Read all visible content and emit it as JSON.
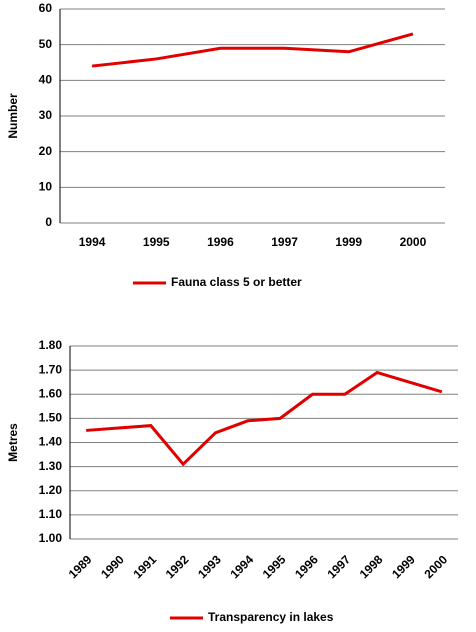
{
  "chart_data": [
    {
      "type": "line",
      "y_label": "Number",
      "categories": [
        "1994",
        "1995",
        "1996",
        "1997",
        "1999",
        "2000"
      ],
      "series": [
        {
          "name": "Fauna class 5 or better",
          "color": "#e00000",
          "values": [
            44,
            46,
            49,
            49,
            48,
            53
          ]
        }
      ],
      "ylim": [
        0,
        60
      ],
      "yticks": [
        0,
        10,
        20,
        30,
        40,
        50,
        60
      ],
      "grid": true,
      "legend": "bottom"
    },
    {
      "type": "line",
      "y_label": "Metres",
      "categories": [
        "1989",
        "1990",
        "1991",
        "1992",
        "1993",
        "1994",
        "1995",
        "1996",
        "1997",
        "1998",
        "1999",
        "2000"
      ],
      "series": [
        {
          "name": "Transparency in lakes",
          "color": "#e00000",
          "values": [
            1.45,
            1.46,
            1.47,
            1.31,
            1.44,
            1.49,
            1.5,
            1.6,
            1.6,
            1.69,
            1.65,
            1.61
          ]
        }
      ],
      "ylim": [
        1.0,
        1.8
      ],
      "yticks": [
        {
          "value": 1.0,
          "label": "1.00"
        },
        {
          "value": 1.1,
          "label": "1.10"
        },
        {
          "value": 1.2,
          "label": "1.20"
        },
        {
          "value": 1.3,
          "label": "1.30"
        },
        {
          "value": 1.4,
          "label": "1.40"
        },
        {
          "value": 1.5,
          "label": "1.50"
        },
        {
          "value": 1.6,
          "label": "1.60"
        },
        {
          "value": 1.7,
          "label": "1.70"
        },
        {
          "value": 1.8,
          "label": "1.80"
        }
      ],
      "grid": true,
      "legend": "bottom",
      "rotate_labels": true
    }
  ]
}
